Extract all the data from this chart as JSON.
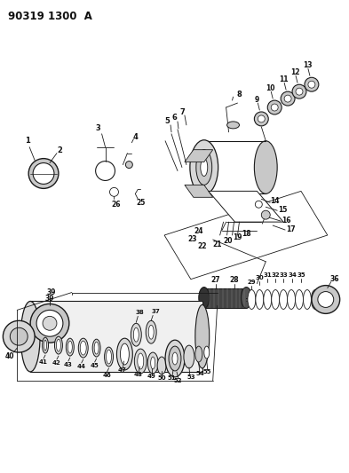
{
  "title": "90319 1300  A",
  "bg_color": "#ffffff",
  "line_color": "#1a1a1a",
  "text_color": "#111111",
  "figsize": [
    3.93,
    5.33
  ],
  "dpi": 100,
  "gray_light": "#c8c8c8",
  "gray_mid": "#999999",
  "gray_dark": "#555555",
  "gray_fill": "#d8d8d8"
}
